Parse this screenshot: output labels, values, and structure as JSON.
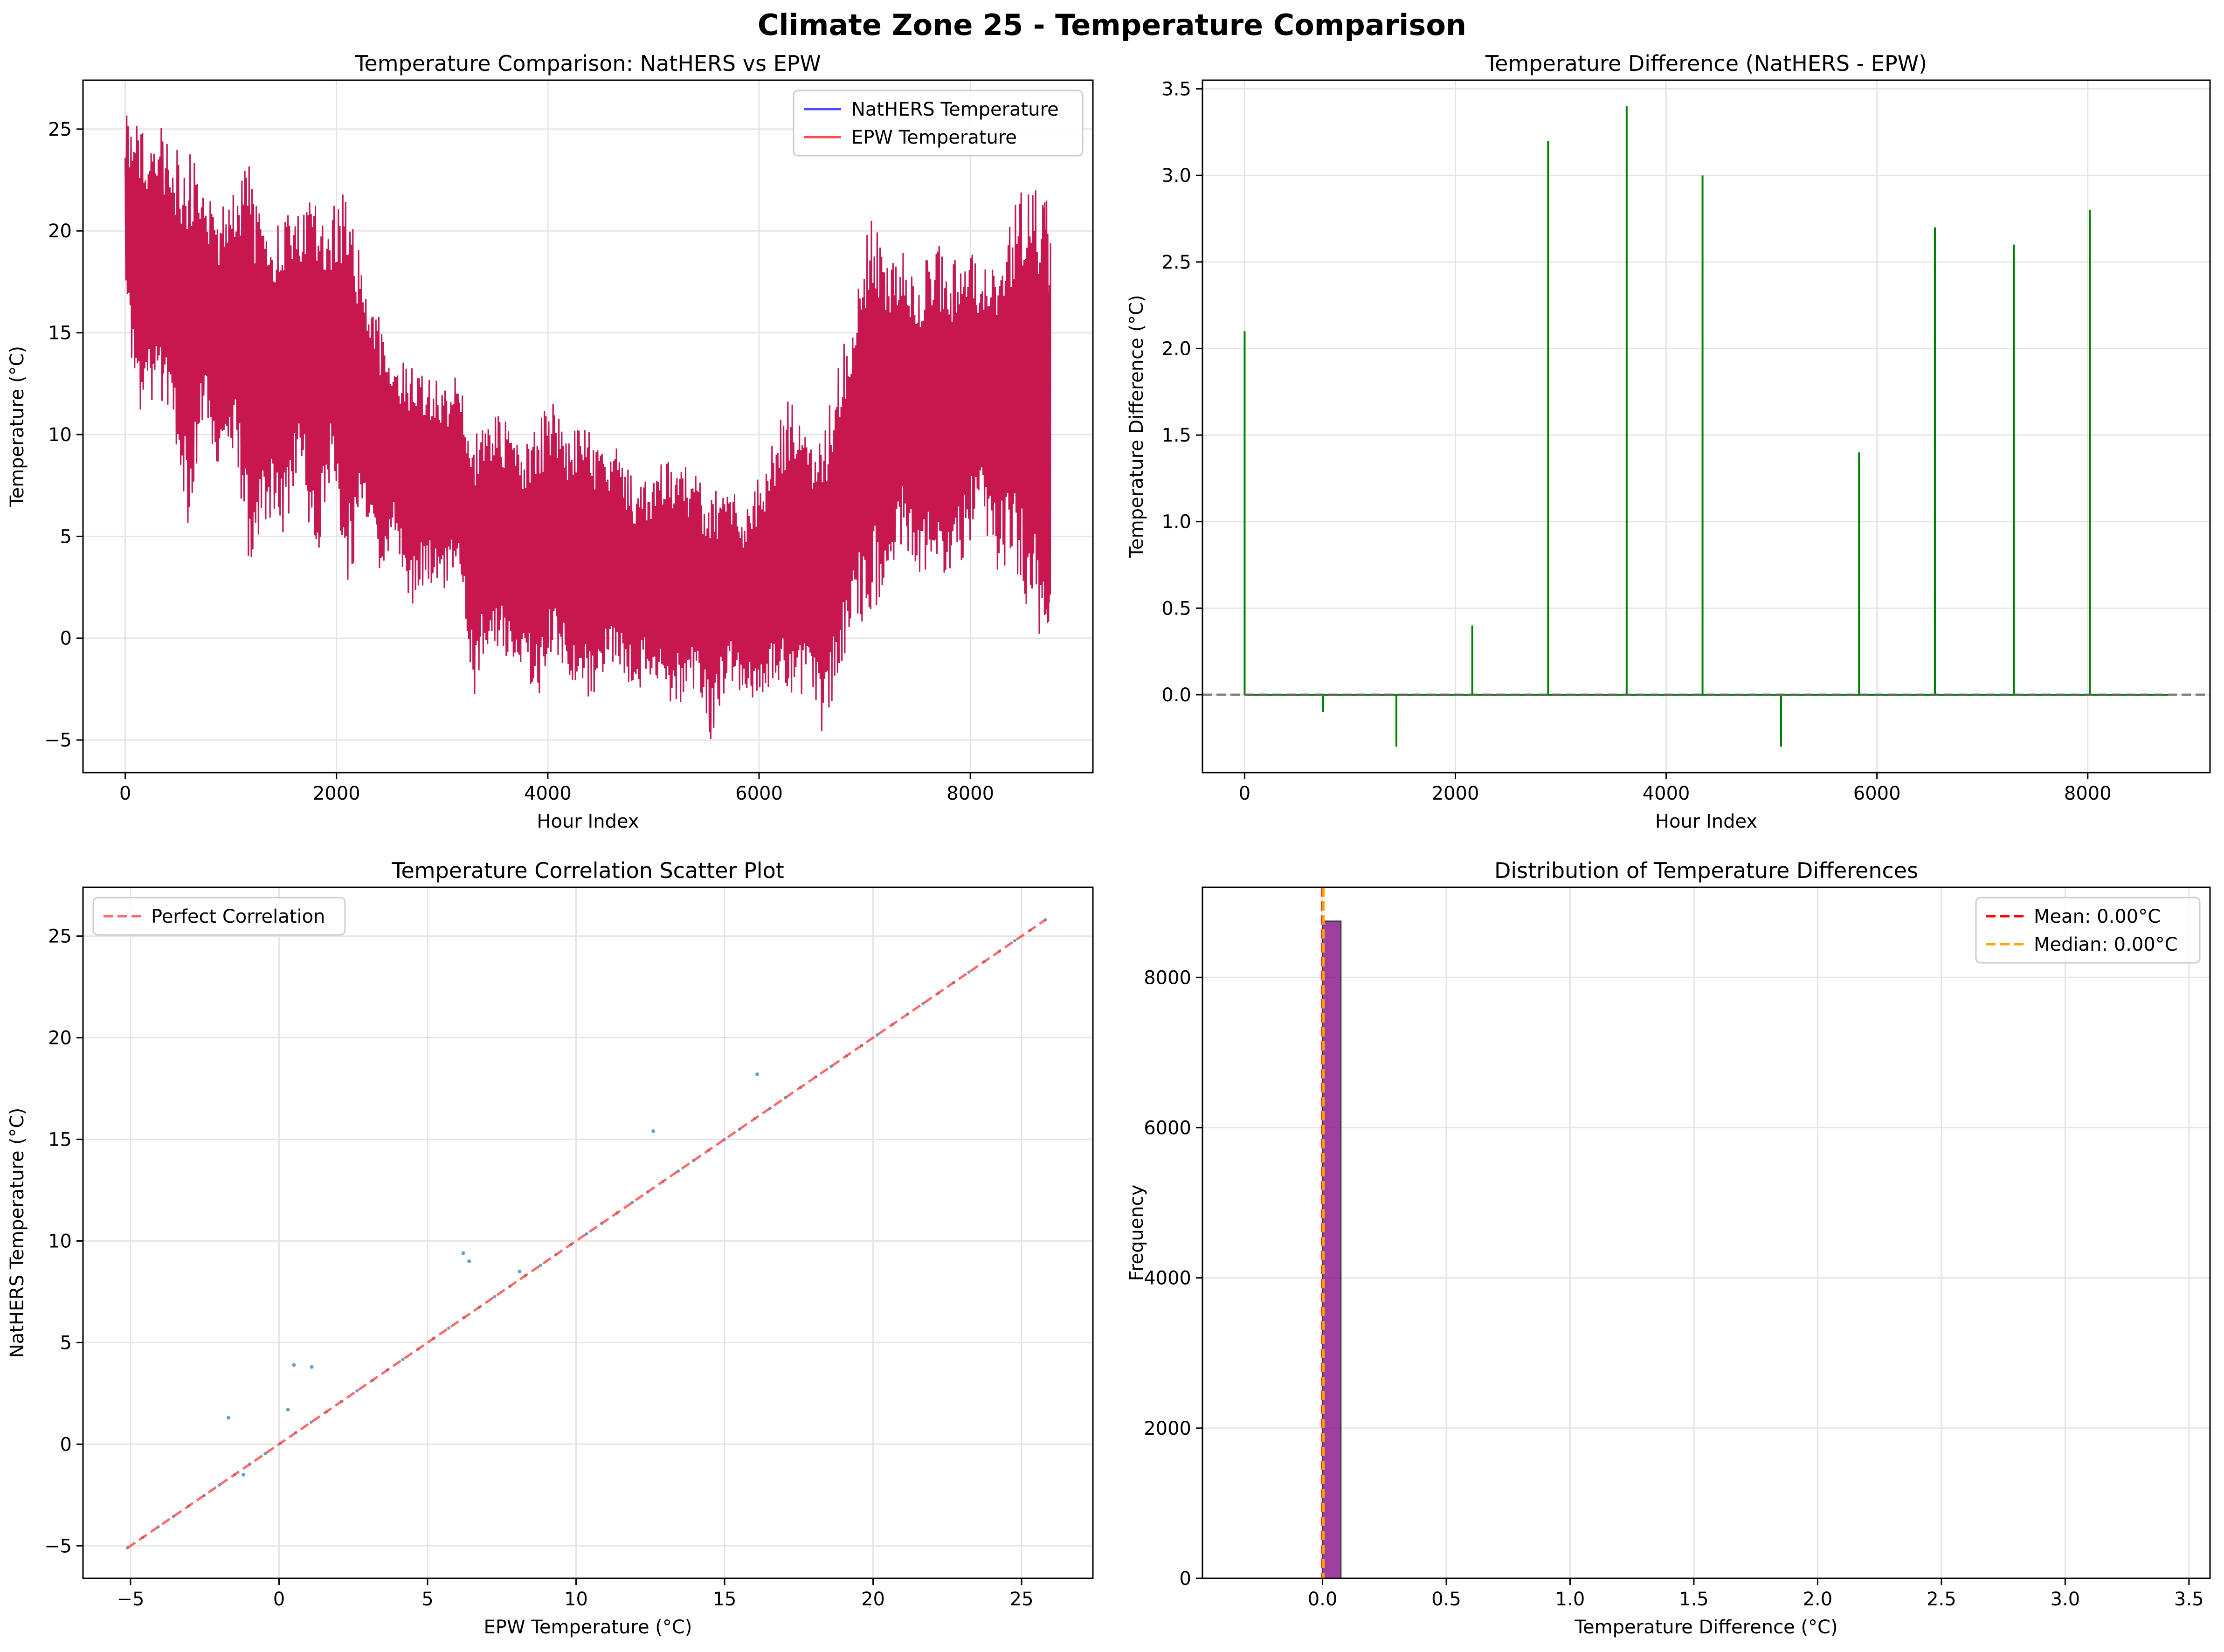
{
  "suptitle": "Climate Zone 25 - Temperature Comparison",
  "colors": {
    "nathers": "#0000ff",
    "epw": "#ff0000",
    "overlap": "#c8174e",
    "diff": "#008000",
    "scatter": "#1f77b4",
    "perfect": "#ff4444",
    "hist": "#800080",
    "mean": "#ff0000",
    "median": "#ffa500",
    "grid": "#e5e5e5"
  },
  "chart_data": [
    {
      "type": "line",
      "title": "Temperature Comparison: NatHERS vs EPW",
      "xlabel": "Hour Index",
      "ylabel": "Temperature (°C)",
      "xlim": [
        -400,
        9160
      ],
      "ylim": [
        -6.6,
        27.4
      ],
      "xticks": [
        0,
        2000,
        4000,
        6000,
        8000
      ],
      "yticks": [
        -5,
        0,
        5,
        10,
        15,
        20,
        25
      ],
      "grid": true,
      "legend": "top-right",
      "series": [
        {
          "name": "NatHERS Temperature",
          "color": "#0000ff"
        },
        {
          "name": "EPW Temperature",
          "color": "#ff0000"
        }
      ],
      "envelope": {
        "x": [
          0,
          150,
          300,
          450,
          600,
          750,
          900,
          1050,
          1200,
          1350,
          1500,
          1650,
          1800,
          1950,
          2100,
          2250,
          2400,
          2550,
          2700,
          2850,
          3000,
          3150,
          3300,
          3450,
          3600,
          3750,
          3900,
          4050,
          4200,
          4350,
          4500,
          4650,
          4800,
          4950,
          5100,
          5250,
          5400,
          5550,
          5700,
          5850,
          6000,
          6150,
          6300,
          6450,
          6600,
          6750,
          6900,
          7050,
          7200,
          7350,
          7500,
          7650,
          7800,
          7950,
          8100,
          8250,
          8400,
          8550,
          8700,
          8759
        ],
        "y_high": [
          25.8,
          25,
          25.6,
          24,
          24.2,
          22,
          21,
          22.5,
          23.7,
          20,
          22,
          21,
          22,
          21,
          22.6,
          18,
          16,
          14,
          13.5,
          13,
          12.5,
          13,
          10,
          11,
          11,
          9.5,
          11,
          11.5,
          10,
          11.6,
          9,
          10,
          8,
          8,
          9,
          9,
          8,
          7,
          8,
          6,
          8,
          10,
          12,
          10,
          10,
          14,
          17,
          20.7,
          19.5,
          20,
          18,
          20,
          19,
          20,
          18,
          19,
          21,
          22.9,
          22.8,
          19.4
        ],
        "y_low": [
          16,
          10,
          12,
          10,
          5,
          11,
          8,
          9,
          1.6,
          6,
          4,
          9,
          3,
          8,
          2,
          6,
          2,
          5,
          1,
          3,
          2,
          3,
          -3,
          0,
          -1,
          -2,
          -3,
          -1,
          -2,
          -3,
          -2.5,
          -1,
          -3,
          -2,
          -3,
          -3.5,
          -2.5,
          -5.2,
          -2,
          -3,
          -3,
          -2,
          -4,
          -3,
          -5,
          -2,
          0,
          1,
          2,
          4,
          2,
          3,
          2,
          4,
          6,
          3,
          4,
          1,
          -1,
          1.3
        ]
      }
    },
    {
      "type": "line",
      "title": "Temperature Difference (NatHERS - EPW)",
      "xlabel": "Hour Index",
      "ylabel": "Temperature Difference (°C)",
      "xlim": [
        -400,
        9160
      ],
      "ylim": [
        -0.45,
        3.55
      ],
      "xticks": [
        0,
        2000,
        4000,
        6000,
        8000
      ],
      "yticks": [
        0.0,
        0.5,
        1.0,
        1.5,
        2.0,
        2.5,
        3.0,
        3.5
      ],
      "grid": true,
      "baseline": 0,
      "spikes": {
        "x": [
          0,
          745,
          1440,
          2160,
          2880,
          3625,
          4345,
          5090,
          5830,
          6550,
          7300,
          8020
        ],
        "y": [
          2.1,
          -0.1,
          -0.3,
          0.4,
          3.2,
          3.4,
          3.0,
          -0.3,
          1.4,
          2.7,
          2.6,
          2.8
        ]
      }
    },
    {
      "type": "scatter",
      "title": "Temperature Correlation Scatter Plot",
      "xlabel": "EPW Temperature (°C)",
      "ylabel": "NatHERS Temperature (°C)",
      "xlim": [
        -6.6,
        27.4
      ],
      "ylim": [
        -6.6,
        27.4
      ],
      "xticks": [
        -5,
        0,
        5,
        10,
        15,
        20,
        25
      ],
      "yticks": [
        -5,
        0,
        5,
        10,
        15,
        20,
        25
      ],
      "grid": true,
      "legend": "top-left",
      "perfect_line": {
        "name": "Perfect Correlation",
        "x": [
          -5.1,
          25.8
        ],
        "y": [
          -5.1,
          25.8
        ]
      },
      "outliers": {
        "x": [
          -1.7,
          0.5,
          1.1,
          0.3,
          -1.2,
          6.2,
          6.4,
          8.1,
          12.6,
          16.1
        ],
        "y": [
          1.3,
          3.9,
          3.8,
          1.7,
          -1.5,
          9.4,
          9.0,
          8.5,
          15.4,
          18.2
        ]
      }
    },
    {
      "type": "bar",
      "title": "Distribution of Temperature Differences",
      "xlabel": "Temperature Difference (°C)",
      "ylabel": "Frequency",
      "xlim": [
        -0.485,
        3.585
      ],
      "ylim": [
        0,
        9200
      ],
      "xticks": [
        0.0,
        0.5,
        1.0,
        1.5,
        2.0,
        2.5,
        3.0,
        3.5
      ],
      "yticks": [
        0,
        2000,
        4000,
        6000,
        8000
      ],
      "grid": true,
      "legend": "top-right",
      "bins": [
        {
          "x0": 0.0,
          "x1": 0.074,
          "count": 8748
        }
      ],
      "mean": {
        "name": "Mean: 0.00°C",
        "value": 0.0
      },
      "median": {
        "name": "Median: 0.00°C",
        "value": 0.0
      }
    }
  ]
}
